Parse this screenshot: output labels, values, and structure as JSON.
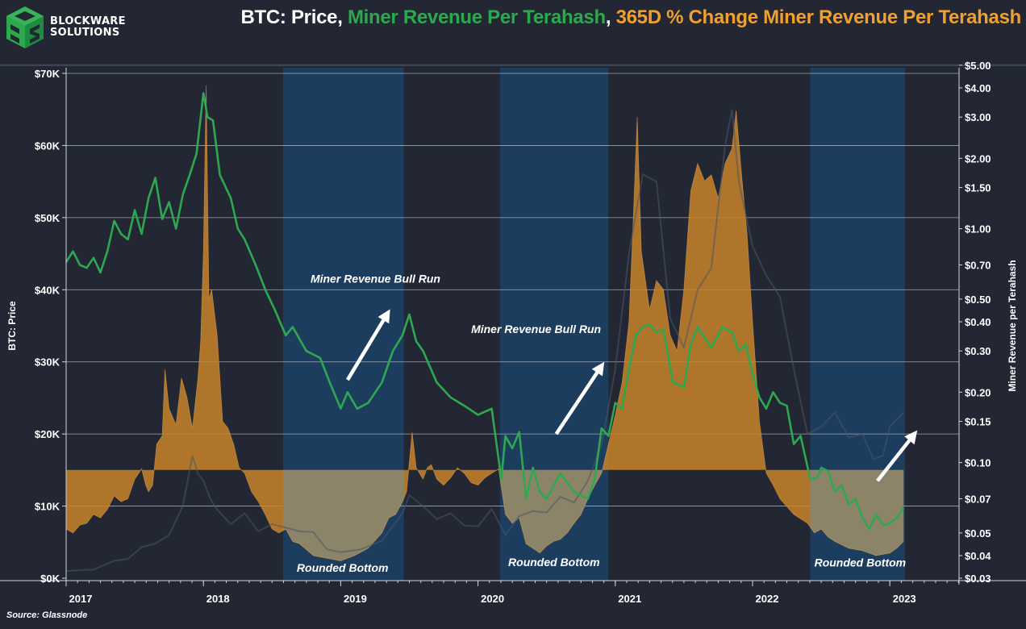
{
  "brand": {
    "name_line1": "BLOCKWARE",
    "name_line2": "SOLUTIONS",
    "logo_icon": "cube-bs-logo-icon",
    "logo_color": "#2ea84f"
  },
  "title": {
    "part1": "BTC: Price",
    "sep1": ", ",
    "part2": "Miner Revenue Per Terahash",
    "sep2": ", ",
    "part3": "365D % Change Miner Revenue Per Terahash",
    "colors": {
      "part1": "#ffffff",
      "part2": "#2ea84f",
      "part3": "#f0a030"
    }
  },
  "source": "Source: Glassnode",
  "chart_data": {
    "type": "line",
    "title": "BTC: Price, Miner Revenue Per Terahash, 365D % Change Miner Revenue Per Terahash",
    "xlabel": "",
    "ylabel": "BTC: Price",
    "y2label": "Miner Revenue per Terahash",
    "x_ticks": [
      "2017",
      "2018",
      "2019",
      "2020",
      "2021",
      "2022",
      "2023"
    ],
    "x_range": [
      2017.0,
      2023.65
    ],
    "y_ticks": [
      "$0K",
      "$10K",
      "$20K",
      "$30K",
      "$40K",
      "$50K",
      "$60K",
      "$70K"
    ],
    "y_tick_values": [
      0,
      10000,
      20000,
      30000,
      40000,
      50000,
      60000,
      70000
    ],
    "ylim": [
      0,
      70000
    ],
    "y2_scale": "log",
    "y2_ticks": [
      "$0.03",
      "$0.04",
      "$0.05",
      "$0.07",
      "$0.10",
      "$0.15",
      "$0.20",
      "$0.30",
      "$0.40",
      "$0.50",
      "$0.70",
      "$1.00",
      "$1.50",
      "$2.00",
      "$3.00",
      "$4.00",
      "$5.00"
    ],
    "y2_tick_values": [
      0.03,
      0.04,
      0.05,
      0.07,
      0.1,
      0.15,
      0.2,
      0.3,
      0.4,
      0.5,
      0.7,
      1.0,
      1.5,
      2.0,
      3.0,
      4.0,
      5.0
    ],
    "y2lim": [
      0.03,
      5.0
    ],
    "grid": true,
    "colors": {
      "background": "#222733",
      "highlight_band": "#1d3d5e",
      "miner_revenue": "#2ea84f",
      "pct_change_fill": "#c8842a",
      "pct_change_neg_fill": "#8c8468",
      "btc_price": "#4a5566",
      "grid": "#c8d0dc",
      "annotation": "#ffffff"
    },
    "highlight_bands": [
      {
        "label": "Rounded Bottom",
        "start": 2018.58,
        "end": 2019.46
      },
      {
        "label": "Rounded Bottom",
        "start": 2020.16,
        "end": 2020.95
      },
      {
        "label": "Rounded Bottom",
        "start": 2022.42,
        "end": 2023.11
      }
    ],
    "annotations": [
      {
        "text": "Miner Revenue Bull Run",
        "x": 2018.78,
        "y_value": 41000
      },
      {
        "text": "Miner Revenue Bull Run",
        "x": 2019.95,
        "y_value": 34000
      },
      {
        "text": "Rounded Bottom",
        "x": 2018.68,
        "y_value": 900
      },
      {
        "text": "Rounded Bottom",
        "x": 2020.22,
        "y_value": 1700
      },
      {
        "text": "Rounded Bottom",
        "x": 2022.45,
        "y_value": 1600
      }
    ],
    "arrows": [
      {
        "from": [
          2019.05,
          27500
        ],
        "to": [
          2019.36,
          37300
        ]
      },
      {
        "from": [
          2020.57,
          20000
        ],
        "to": [
          2020.92,
          30000
        ]
      },
      {
        "from": [
          2022.91,
          13500
        ],
        "to": [
          2023.2,
          20500
        ]
      }
    ],
    "series": [
      {
        "name": "BTC: Price",
        "axis": "left",
        "style": "faint-line",
        "x": [
          2017.0,
          2017.2,
          2017.35,
          2017.45,
          2017.55,
          2017.65,
          2017.75,
          2017.85,
          2017.92,
          2017.96,
          2018.0,
          2018.05,
          2018.1,
          2018.2,
          2018.3,
          2018.4,
          2018.5,
          2018.6,
          2018.7,
          2018.8,
          2018.9,
          2019.0,
          2019.15,
          2019.3,
          2019.45,
          2019.5,
          2019.6,
          2019.7,
          2019.8,
          2019.9,
          2020.0,
          2020.1,
          2020.2,
          2020.3,
          2020.4,
          2020.5,
          2020.6,
          2020.7,
          2020.8,
          2020.9,
          2021.0,
          2021.05,
          2021.1,
          2021.2,
          2021.3,
          2021.4,
          2021.5,
          2021.6,
          2021.7,
          2021.8,
          2021.85,
          2021.9,
          2022.0,
          2022.1,
          2022.2,
          2022.3,
          2022.4,
          2022.5,
          2022.6,
          2022.7,
          2022.8,
          2022.88,
          2022.95,
          2023.0,
          2023.1
        ],
        "values": [
          1000,
          1200,
          2400,
          2700,
          4300,
          4800,
          6000,
          10000,
          17000,
          14500,
          13500,
          11000,
          9500,
          7500,
          9000,
          6500,
          7500,
          7000,
          6500,
          6400,
          4000,
          3600,
          4000,
          5200,
          9000,
          11500,
          10000,
          8200,
          9000,
          7300,
          7200,
          9600,
          6000,
          8600,
          9300,
          9100,
          11300,
          10500,
          13500,
          18500,
          29000,
          37000,
          45000,
          56000,
          55000,
          36000,
          32000,
          40000,
          43000,
          60000,
          65000,
          55000,
          46000,
          42000,
          39000,
          29000,
          20000,
          21000,
          23000,
          19500,
          20000,
          16500,
          17000,
          21000,
          23000
        ]
      },
      {
        "name": "Miner Revenue Per Terahash",
        "axis": "right",
        "style": "line",
        "x": [
          2017.0,
          2017.05,
          2017.1,
          2017.15,
          2017.2,
          2017.25,
          2017.3,
          2017.35,
          2017.4,
          2017.45,
          2017.5,
          2017.55,
          2017.6,
          2017.65,
          2017.7,
          2017.75,
          2017.8,
          2017.85,
          2017.9,
          2017.95,
          2018.0,
          2018.03,
          2018.07,
          2018.12,
          2018.2,
          2018.25,
          2018.3,
          2018.38,
          2018.45,
          2018.52,
          2018.6,
          2018.65,
          2018.75,
          2018.85,
          2018.92,
          2019.0,
          2019.05,
          2019.12,
          2019.2,
          2019.3,
          2019.38,
          2019.45,
          2019.5,
          2019.55,
          2019.6,
          2019.7,
          2019.8,
          2019.9,
          2020.0,
          2020.1,
          2020.17,
          2020.2,
          2020.25,
          2020.3,
          2020.35,
          2020.4,
          2020.45,
          2020.5,
          2020.6,
          2020.7,
          2020.8,
          2020.85,
          2020.9,
          2020.95,
          2021.0,
          2021.05,
          2021.1,
          2021.15,
          2021.2,
          2021.25,
          2021.3,
          2021.35,
          2021.42,
          2021.5,
          2021.55,
          2021.6,
          2021.7,
          2021.78,
          2021.85,
          2021.9,
          2021.95,
          2022.0,
          2022.05,
          2022.1,
          2022.15,
          2022.2,
          2022.25,
          2022.3,
          2022.35,
          2022.42,
          2022.47,
          2022.5,
          2022.55,
          2022.6,
          2022.65,
          2022.7,
          2022.75,
          2022.8,
          2022.85,
          2022.9,
          2022.95,
          2023.0,
          2023.05,
          2023.1
        ],
        "values": [
          0.72,
          0.8,
          0.7,
          0.68,
          0.75,
          0.65,
          0.8,
          1.08,
          0.95,
          0.9,
          1.2,
          0.95,
          1.35,
          1.65,
          1.1,
          1.3,
          1.0,
          1.4,
          1.7,
          2.1,
          3.8,
          3.0,
          2.9,
          1.7,
          1.35,
          1.0,
          0.9,
          0.7,
          0.55,
          0.45,
          0.35,
          0.38,
          0.3,
          0.28,
          0.22,
          0.17,
          0.2,
          0.17,
          0.18,
          0.22,
          0.3,
          0.35,
          0.43,
          0.33,
          0.3,
          0.22,
          0.19,
          0.175,
          0.16,
          0.17,
          0.085,
          0.13,
          0.115,
          0.135,
          0.07,
          0.095,
          0.075,
          0.07,
          0.09,
          0.075,
          0.07,
          0.085,
          0.14,
          0.13,
          0.18,
          0.17,
          0.25,
          0.35,
          0.38,
          0.39,
          0.36,
          0.37,
          0.22,
          0.21,
          0.32,
          0.38,
          0.31,
          0.38,
          0.36,
          0.3,
          0.32,
          0.24,
          0.19,
          0.17,
          0.2,
          0.18,
          0.175,
          0.12,
          0.13,
          0.085,
          0.086,
          0.095,
          0.092,
          0.075,
          0.08,
          0.066,
          0.07,
          0.058,
          0.052,
          0.06,
          0.054,
          0.055,
          0.058,
          0.064
        ]
      },
      {
        "name": "365D % Change Miner Revenue Per Terahash",
        "axis": "right-overlay",
        "style": "area",
        "baseline_value": 0.093,
        "x": [
          2017.0,
          2017.05,
          2017.1,
          2017.15,
          2017.2,
          2017.25,
          2017.3,
          2017.35,
          2017.4,
          2017.45,
          2017.5,
          2017.55,
          2017.58,
          2017.6,
          2017.63,
          2017.66,
          2017.7,
          2017.72,
          2017.75,
          2017.8,
          2017.84,
          2017.88,
          2017.92,
          2017.96,
          2017.98,
          2018.0,
          2018.02,
          2018.04,
          2018.06,
          2018.1,
          2018.14,
          2018.18,
          2018.22,
          2018.26,
          2018.3,
          2018.35,
          2018.4,
          2018.45,
          2018.5,
          2018.55,
          2018.6,
          2018.65,
          2018.7,
          2018.8,
          2018.9,
          2019.0,
          2019.1,
          2019.2,
          2019.3,
          2019.35,
          2019.4,
          2019.45,
          2019.48,
          2019.52,
          2019.55,
          2019.6,
          2019.63,
          2019.66,
          2019.7,
          2019.75,
          2019.8,
          2019.85,
          2019.9,
          2019.95,
          2020.0,
          2020.05,
          2020.1,
          2020.15,
          2020.2,
          2020.25,
          2020.3,
          2020.35,
          2020.4,
          2020.45,
          2020.5,
          2020.55,
          2020.6,
          2020.65,
          2020.7,
          2020.75,
          2020.8,
          2020.85,
          2020.9,
          2020.95,
          2021.0,
          2021.05,
          2021.1,
          2021.13,
          2021.16,
          2021.19,
          2021.22,
          2021.25,
          2021.3,
          2021.35,
          2021.4,
          2021.45,
          2021.5,
          2021.55,
          2021.6,
          2021.65,
          2021.7,
          2021.75,
          2021.8,
          2021.85,
          2021.88,
          2021.92,
          2021.96,
          2022.0,
          2022.05,
          2022.1,
          2022.15,
          2022.2,
          2022.3,
          2022.4,
          2022.45,
          2022.5,
          2022.55,
          2022.6,
          2022.7,
          2022.8,
          2022.9,
          2023.0,
          2023.05,
          2023.1
        ],
        "values": [
          0.052,
          0.05,
          0.054,
          0.055,
          0.06,
          0.058,
          0.063,
          0.072,
          0.068,
          0.07,
          0.085,
          0.094,
          0.08,
          0.075,
          0.08,
          0.12,
          0.13,
          0.25,
          0.17,
          0.145,
          0.23,
          0.19,
          0.14,
          0.23,
          0.33,
          0.8,
          4.1,
          0.5,
          0.55,
          0.35,
          0.15,
          0.14,
          0.12,
          0.095,
          0.09,
          0.075,
          0.068,
          0.06,
          0.052,
          0.05,
          0.052,
          0.046,
          0.045,
          0.04,
          0.039,
          0.038,
          0.04,
          0.043,
          0.05,
          0.058,
          0.06,
          0.068,
          0.075,
          0.135,
          0.095,
          0.085,
          0.095,
          0.098,
          0.085,
          0.08,
          0.086,
          0.095,
          0.09,
          0.082,
          0.08,
          0.086,
          0.09,
          0.094,
          0.06,
          0.055,
          0.058,
          0.045,
          0.043,
          0.041,
          0.044,
          0.046,
          0.047,
          0.05,
          0.055,
          0.06,
          0.07,
          0.08,
          0.09,
          0.12,
          0.16,
          0.22,
          0.4,
          1.05,
          3.0,
          0.8,
          0.6,
          0.45,
          0.6,
          0.55,
          0.35,
          0.3,
          0.55,
          1.45,
          1.9,
          1.6,
          1.7,
          1.35,
          1.9,
          2.2,
          3.2,
          1.7,
          0.95,
          0.4,
          0.15,
          0.09,
          0.08,
          0.07,
          0.06,
          0.055,
          0.05,
          0.052,
          0.048,
          0.046,
          0.043,
          0.042,
          0.04,
          0.041,
          0.043,
          0.046
        ]
      }
    ]
  }
}
